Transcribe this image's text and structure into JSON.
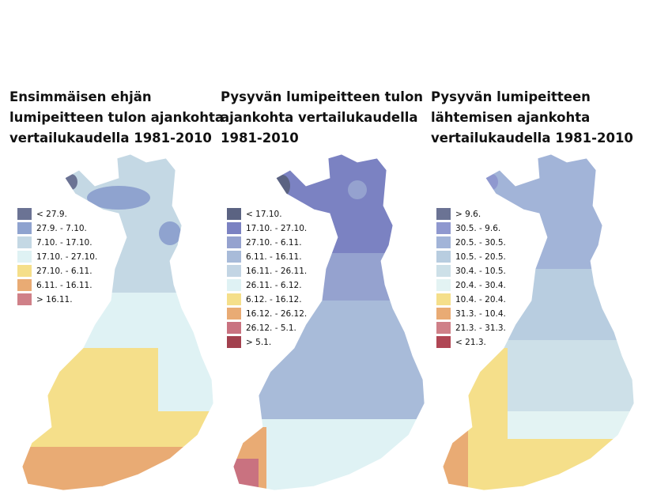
{
  "panels": [
    {
      "title_lines": [
        "Ensimmäisen ehjän",
        "lumipeitteen tulon ajankohta",
        "vertailukaudella 1981-2010"
      ],
      "legend": [
        {
          "label": "< 27.9.",
          "color": "#6b7394"
        },
        {
          "label": "27.9. - 7.10.",
          "color": "#8fa3cf"
        },
        {
          "label": "7.10. - 17.10.",
          "color": "#c4d8e4"
        },
        {
          "label": "17.10. - 27.10.",
          "color": "#dff2f4"
        },
        {
          "label": "27.10. - 6.11.",
          "color": "#f5df8a"
        },
        {
          "label": "6.11. - 16.11.",
          "color": "#e9ab74"
        },
        {
          "label": "> 16.11.",
          "color": "#cf8088"
        }
      ]
    },
    {
      "title_lines": [
        "Pysyvän lumipeitteen tulon",
        "ajankohta vertailukaudella",
        "1981-2010"
      ],
      "legend": [
        {
          "label": "< 17.10.",
          "color": "#5b6382"
        },
        {
          "label": "17.10. - 27.10.",
          "color": "#7b82c2"
        },
        {
          "label": "27.10. - 6.11.",
          "color": "#95a2cf"
        },
        {
          "label": "6.11. - 16.11.",
          "color": "#a8bbd9"
        },
        {
          "label": "16.11. - 26.11.",
          "color": "#c3d5e4"
        },
        {
          "label": "26.11. - 6.12.",
          "color": "#dff2f4"
        },
        {
          "label": "6.12. - 16.12.",
          "color": "#f5df8a"
        },
        {
          "label": "16.12. - 26.12.",
          "color": "#e9ab74"
        },
        {
          "label": "26.12. - 5.1.",
          "color": "#c97280"
        },
        {
          "label": "> 5.1.",
          "color": "#a2404e"
        }
      ]
    },
    {
      "title_lines": [
        "Pysyvän lumipeitteen",
        "lähtemisen ajankohta",
        "vertailukaudella 1981-2010"
      ],
      "legend": [
        {
          "label": "> 9.6.",
          "color": "#6b7394"
        },
        {
          "label": "30.5. - 9.6.",
          "color": "#8f98cf"
        },
        {
          "label": "20.5. - 30.5.",
          "color": "#a2b4d8"
        },
        {
          "label": "10.5. - 20.5.",
          "color": "#b8cde0"
        },
        {
          "label": "30.4. - 10.5.",
          "color": "#cde0e8"
        },
        {
          "label": "20.4. - 30.4.",
          "color": "#e3f3f3"
        },
        {
          "label": "10.4. - 20.4.",
          "color": "#f5df8a"
        },
        {
          "label": "31.3. - 10.4.",
          "color": "#e9ab74"
        },
        {
          "label": "21.3. - 31.3.",
          "color": "#cf8088"
        },
        {
          "label": "< 21.3.",
          "color": "#b04654"
        }
      ]
    }
  ]
}
